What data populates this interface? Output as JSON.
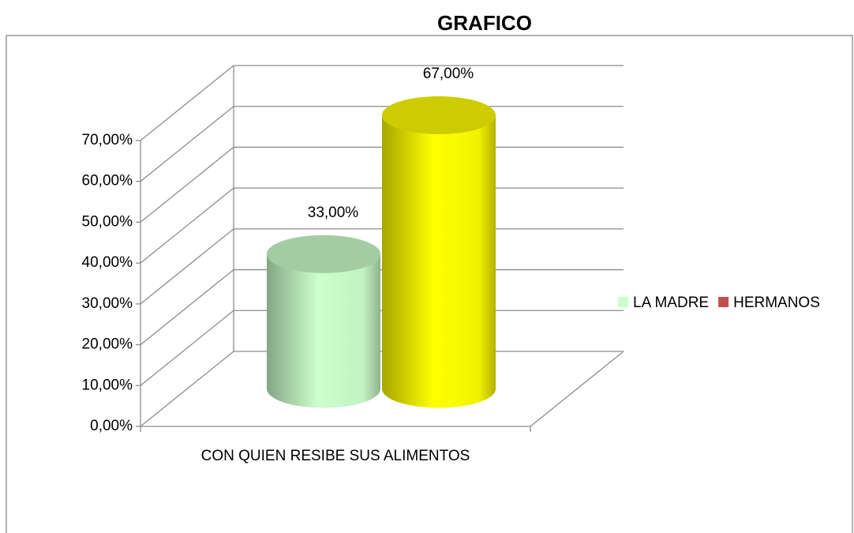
{
  "chart_data": {
    "type": "cylinder",
    "title": "GRAFICO",
    "categories": [
      "CON QUIEN RESIBE SUS ALIMENTOS"
    ],
    "series": [
      {
        "name": "LA MADRE",
        "color": "#ccffcc",
        "legend_color": "#ccffcc",
        "values": [
          33
        ],
        "value_labels": [
          "33,00%"
        ]
      },
      {
        "name": "HERMANOS",
        "color": "#ffff00",
        "legend_color": "#c0504d",
        "values": [
          67
        ],
        "value_labels": [
          "67,00%"
        ]
      }
    ],
    "ylim": [
      0,
      70
    ],
    "yticks": [
      {
        "value": 0,
        "label": "0,00%"
      },
      {
        "value": 10,
        "label": "10,00%"
      },
      {
        "value": 20,
        "label": "20,00%"
      },
      {
        "value": 30,
        "label": "30,00%"
      },
      {
        "value": 40,
        "label": "40,00%"
      },
      {
        "value": 50,
        "label": "50,00%"
      },
      {
        "value": 60,
        "label": "60,00%"
      },
      {
        "value": 70,
        "label": "70,00%"
      }
    ],
    "grid": true,
    "legend": "right"
  }
}
